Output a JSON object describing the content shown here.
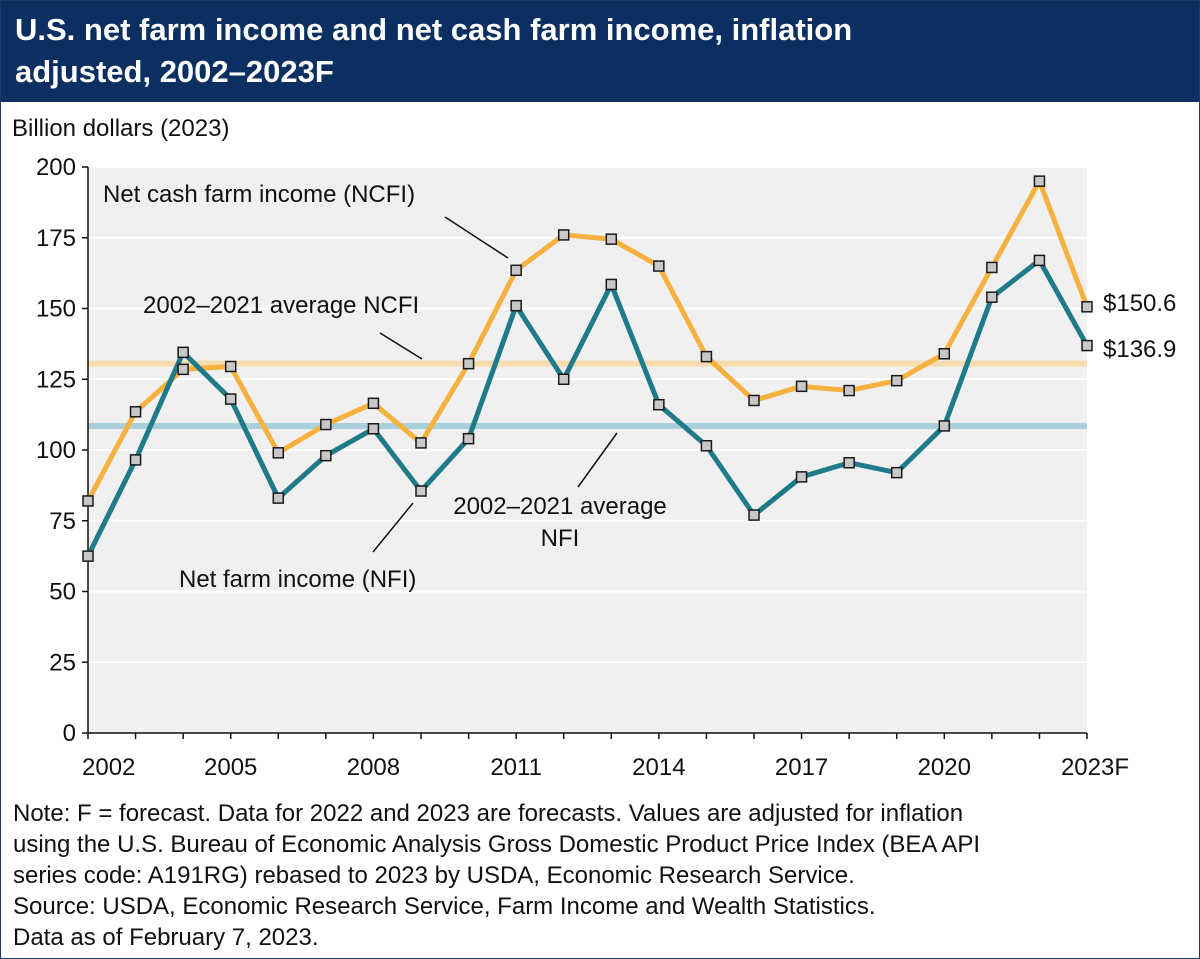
{
  "title_lines": [
    "U.S. net farm income and net cash farm income, inflation",
    "adjusted, 2002–2023F"
  ],
  "note_lines": [
    "Note: F = forecast. Data for 2022 and 2023 are forecasts. Values are adjusted for inflation",
    "using the U.S. Bureau of Economic Analysis Gross Domestic Product Price Index (BEA API",
    "series code: A191RG) rebased to 2023 by USDA, Economic Research Service.",
    "Source: USDA, Economic Research Service, Farm Income and Wealth Statistics.",
    "Data as of February 7, 2023."
  ],
  "chart_data": {
    "type": "line",
    "ylabel": "Billion dollars (2023)",
    "ylim": [
      0,
      200
    ],
    "yticks": [
      0,
      25,
      50,
      75,
      100,
      125,
      150,
      175,
      200
    ],
    "x": [
      2002,
      2003,
      2004,
      2005,
      2006,
      2007,
      2008,
      2009,
      2010,
      2011,
      2012,
      2013,
      2014,
      2015,
      2016,
      2017,
      2018,
      2019,
      2020,
      2021,
      2022,
      2023
    ],
    "xtick_labels": [
      "2002",
      "2005",
      "2008",
      "2011",
      "2014",
      "2017",
      "2020",
      "2023F"
    ],
    "grid": "horizontal",
    "series": [
      {
        "name": "Net cash farm income (NCFI)",
        "color": "#f6b13f",
        "values": [
          82,
          113.5,
          128.5,
          129.5,
          99,
          109,
          116.5,
          102.5,
          130.5,
          163.5,
          176,
          174.5,
          165,
          133,
          117.5,
          122.5,
          121,
          124.5,
          134,
          164.5,
          195,
          150.6
        ]
      },
      {
        "name": "Net farm income (NFI)",
        "color": "#1f7a8a",
        "values": [
          62.5,
          96.5,
          134.5,
          118,
          83,
          98,
          107.5,
          85.5,
          104,
          151,
          125,
          158.5,
          116,
          101.5,
          77,
          90.5,
          95.5,
          92,
          108.5,
          154,
          167,
          136.9
        ]
      }
    ],
    "averages": [
      {
        "label": "2002–2021 average NCFI",
        "value": 130.5,
        "color": "#f7dcb0"
      },
      {
        "label_lines": [
          "2002–2021 average",
          "NFI"
        ],
        "value": 108.5,
        "color": "#a9d0da"
      }
    ],
    "end_labels": [
      "$150.6",
      "$136.9"
    ],
    "marker": {
      "shape": "square",
      "fill": "#c8c8c8",
      "stroke": "#1a1a1a"
    }
  }
}
